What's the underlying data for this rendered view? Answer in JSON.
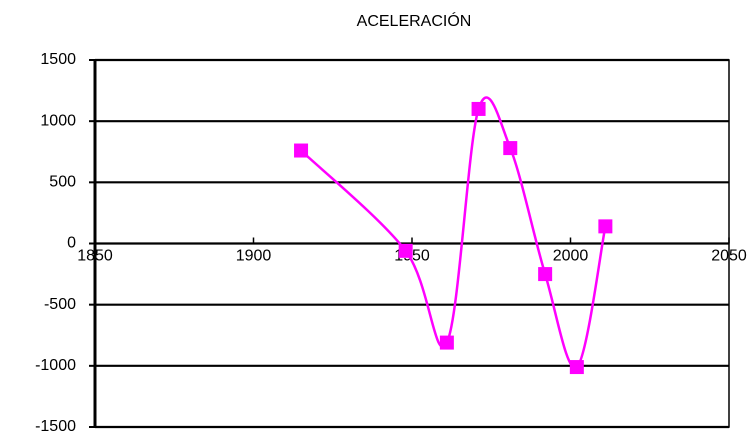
{
  "chart_data": {
    "type": "scatter",
    "title": "ACELERACIÓN",
    "x": [
      1915,
      1948,
      1961,
      1971,
      1981,
      1992,
      2002,
      2011
    ],
    "series": [
      {
        "name": "ACELERACIÓN",
        "color": "#ff00ff",
        "values": [
          760,
          -60,
          -810,
          1100,
          780,
          -250,
          -1010,
          140
        ]
      }
    ],
    "xlim": [
      1850,
      2050
    ],
    "xticks": [
      1850,
      1900,
      1950,
      2000,
      2050
    ],
    "ylim": [
      -1500,
      1500
    ],
    "yticks": [
      -1500,
      -1000,
      -500,
      0,
      500,
      1000,
      1500
    ],
    "grid": true,
    "smooth": true
  }
}
